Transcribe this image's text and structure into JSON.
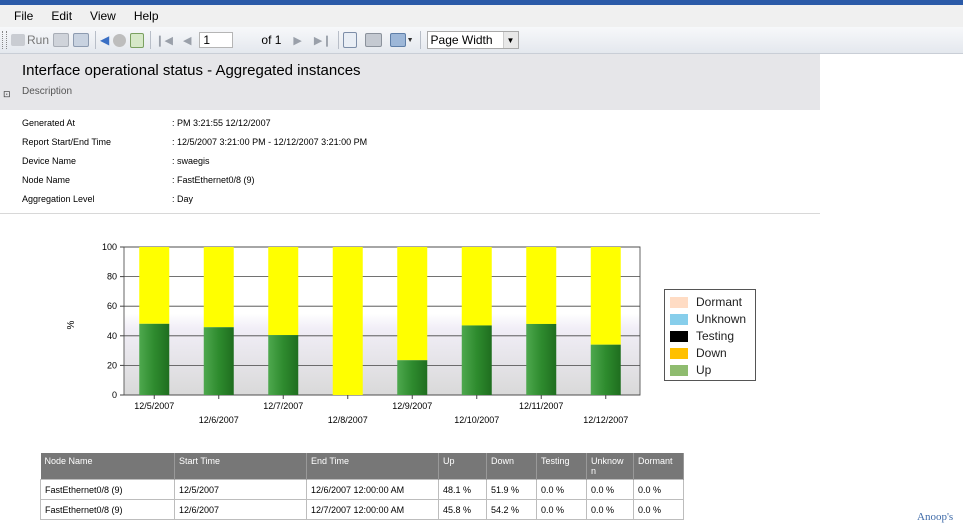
{
  "menu": {
    "items": [
      "File",
      "Edit",
      "View",
      "Help"
    ]
  },
  "toolbar": {
    "run_label": "Run",
    "page_current": "1",
    "page_total_label": "of 1",
    "zoom_value": "Page Width"
  },
  "report": {
    "title": "Interface operational status - Aggregated instances",
    "description_label": "Description",
    "meta": [
      {
        "label": "Generated At",
        "value": ": PM 3:21:55  12/12/2007"
      },
      {
        "label": "Report Start/End Time",
        "value": ":  12/5/2007 3:21:00 PM  -  12/12/2007 3:21:00 PM"
      },
      {
        "label": "Device Name",
        "value": ":  swaegis"
      },
      {
        "label": "Node Name",
        "value": ":  FastEthernet0/8 (9)"
      },
      {
        "label": "Aggregation Level",
        "value": ":  Day"
      }
    ]
  },
  "chart_data": {
    "type": "bar",
    "stacked": true,
    "ylabel": "%",
    "ylim": [
      0,
      100
    ],
    "yticks": [
      0,
      20,
      40,
      60,
      80,
      100
    ],
    "grid": true,
    "legend_position": "right",
    "categories": [
      "12/5/2007",
      "12/6/2007",
      "12/7/2007",
      "12/8/2007",
      "12/9/2007",
      "12/10/2007",
      "12/11/2007",
      "12/12/2007"
    ],
    "series": [
      {
        "name": "Up",
        "color": "#2e8b2e",
        "values": [
          48.1,
          45.8,
          40.5,
          0.0,
          23.5,
          47.0,
          48.0,
          34.0
        ]
      },
      {
        "name": "Down",
        "color": "#ffff00",
        "values": [
          51.9,
          54.2,
          59.5,
          100.0,
          76.5,
          53.0,
          52.0,
          66.0
        ]
      },
      {
        "name": "Testing",
        "color": "#000000",
        "values": [
          0,
          0,
          0,
          0,
          0,
          0,
          0,
          0
        ]
      },
      {
        "name": "Unknown",
        "color": "#87ceeb",
        "values": [
          0,
          0,
          0,
          0,
          0,
          0,
          0,
          0
        ]
      },
      {
        "name": "Dormant",
        "color": "#ffe4cc",
        "values": [
          0,
          0,
          0,
          0,
          0,
          0,
          0,
          0
        ]
      }
    ]
  },
  "legend": [
    {
      "name": "Dormant",
      "color": "#ffdcc4"
    },
    {
      "name": "Unknown",
      "color": "#87ceeb"
    },
    {
      "name": "Testing",
      "color": "#000000"
    },
    {
      "name": "Down",
      "color": "#ffc000"
    },
    {
      "name": "Up",
      "color": "#8fbc6f"
    }
  ],
  "table": {
    "headers": [
      "Node Name",
      "Start Time",
      "End Time",
      "Up",
      "Down",
      "Testing",
      "Unknow n",
      "Dormant"
    ],
    "rows": [
      [
        "FastEthernet0/8 (9)",
        "12/5/2007",
        "12/6/2007 12:00:00 AM",
        "48.1 %",
        "51.9 %",
        "0.0 %",
        "0.0 %",
        "0.0 %"
      ],
      [
        "FastEthernet0/8 (9)",
        "12/6/2007",
        "12/7/2007 12:00:00 AM",
        "45.8 %",
        "54.2 %",
        "0.0 %",
        "0.0 %",
        "0.0 %"
      ]
    ]
  },
  "watermark": "Anoop's"
}
